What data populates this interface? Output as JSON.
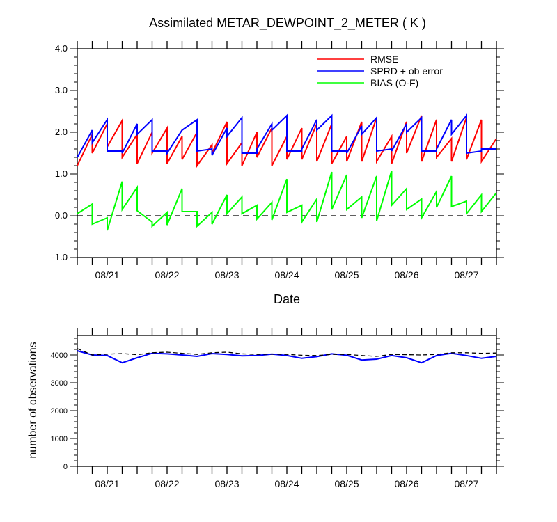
{
  "chart_data": [
    {
      "type": "line",
      "title": "Assimilated METAR_DEWPOINT_2_METER ( K )",
      "xlabel": "Date",
      "ylabel": "",
      "x_tick_labels": [
        "08/21",
        "08/22",
        "08/23",
        "08/24",
        "08/25",
        "08/26",
        "08/27"
      ],
      "x": [
        0,
        0.25,
        0.25,
        0.5,
        0.5,
        0.75,
        0.75,
        1,
        1,
        1.25,
        1.25,
        1.5,
        1.5,
        1.75,
        1.75,
        2,
        2,
        2.25,
        2.25,
        2.5,
        2.5,
        2.75,
        2.75,
        3,
        3,
        3.25,
        3.25,
        3.5,
        3.5,
        3.75,
        3.75,
        4,
        4,
        4.25,
        4.25,
        4.5,
        4.5,
        4.75,
        4.75,
        5,
        5,
        5.25,
        5.25,
        5.5,
        5.5,
        5.75,
        5.75,
        6,
        6,
        6.25,
        6.25,
        6.5,
        6.5,
        6.75,
        6.75,
        7
      ],
      "xlim": [
        0,
        7
      ],
      "ylim": [
        -1.0,
        4.0
      ],
      "y_ticks": [
        -1.0,
        0.0,
        1.0,
        2.0,
        3.0,
        4.0
      ],
      "y_tick_labels": [
        "-1.0",
        "0.0",
        "1.0",
        "2.0",
        "3.0",
        "4.0"
      ],
      "zero_reference": 0.0,
      "legend": {
        "position": "top-right",
        "entries": [
          "RMSE",
          "SPRD + ob error",
          "BIAS (O-F)"
        ]
      },
      "series": [
        {
          "name": "RMSE",
          "color": "#ff0000",
          "values": [
            1.2,
            1.95,
            1.5,
            2.2,
            1.65,
            2.28,
            1.4,
            1.95,
            1.25,
            2.0,
            1.5,
            2.1,
            1.25,
            1.9,
            1.35,
            2.0,
            1.2,
            1.7,
            1.5,
            2.25,
            1.25,
            1.75,
            1.2,
            2.0,
            1.4,
            2.1,
            1.2,
            1.9,
            1.35,
            2.1,
            1.35,
            2.2,
            1.3,
            2.2,
            1.25,
            1.9,
            1.3,
            2.25,
            1.3,
            2.35,
            1.3,
            1.9,
            1.25,
            2.25,
            1.5,
            2.4,
            1.3,
            2.3,
            1.4,
            1.85,
            1.3,
            2.35,
            1.35,
            2.3,
            1.3,
            1.85
          ]
        },
        {
          "name": "SPRD + ob error",
          "color": "#0000ff",
          "values": [
            1.4,
            2.05,
            1.75,
            2.3,
            1.55,
            1.55,
            1.5,
            2.2,
            1.95,
            2.3,
            1.55,
            1.55,
            1.5,
            2.05,
            2.05,
            2.3,
            1.55,
            1.6,
            1.45,
            2.1,
            1.9,
            2.35,
            1.5,
            1.5,
            1.6,
            2.2,
            2.05,
            2.4,
            1.55,
            1.55,
            1.6,
            2.3,
            2.05,
            2.4,
            1.55,
            1.55,
            1.5,
            2.15,
            1.95,
            2.35,
            1.55,
            1.6,
            1.55,
            2.2,
            2.0,
            2.35,
            1.55,
            1.55,
            1.6,
            2.3,
            1.95,
            2.4,
            1.5,
            1.55,
            1.6,
            1.6
          ]
        },
        {
          "name": "BIAS (O-F)",
          "color": "#00ff00",
          "values": [
            0.05,
            0.28,
            -0.2,
            -0.05,
            -0.35,
            0.82,
            0.15,
            0.68,
            0.12,
            -0.15,
            -0.25,
            0.08,
            -0.22,
            0.65,
            0.1,
            0.1,
            -0.25,
            0.08,
            -0.2,
            0.5,
            0.05,
            0.45,
            0.05,
            0.25,
            -0.08,
            0.32,
            -0.1,
            0.88,
            0.08,
            0.25,
            -0.15,
            0.4,
            -0.15,
            1.05,
            0.15,
            0.98,
            0.15,
            0.45,
            -0.05,
            0.95,
            -0.12,
            1.08,
            0.25,
            0.65,
            0.15,
            0.4,
            -0.05,
            0.58,
            0.2,
            0.95,
            0.22,
            0.35,
            0.05,
            0.5,
            0.1,
            0.55
          ]
        }
      ],
      "colors": {
        "zero_line": "#000000"
      }
    },
    {
      "type": "line",
      "title": "",
      "xlabel": "",
      "ylabel": "number of observations",
      "x_tick_labels": [
        "08/21",
        "08/22",
        "08/23",
        "08/24",
        "08/25",
        "08/26",
        "08/27"
      ],
      "x": [
        0,
        0.25,
        0.5,
        0.75,
        1,
        1.25,
        1.5,
        1.75,
        2,
        2.25,
        2.5,
        2.75,
        3,
        3.25,
        3.5,
        3.75,
        4,
        4.25,
        4.5,
        4.75,
        5,
        5.25,
        5.5,
        5.75,
        6,
        6.25,
        6.5,
        6.75,
        7
      ],
      "xlim": [
        0,
        7
      ],
      "ylim": [
        0,
        4700
      ],
      "y_ticks": [
        0,
        1000,
        2000,
        3000,
        4000
      ],
      "y_tick_labels": [
        "0",
        "1000",
        "2000",
        "3000",
        "4000"
      ],
      "series": [
        {
          "name": "",
          "color": "#0000ff",
          "style": "solid",
          "values": [
            4150,
            4000,
            3980,
            3720,
            3900,
            4060,
            4040,
            4000,
            3950,
            4050,
            4020,
            3970,
            3980,
            4030,
            3980,
            3880,
            3940,
            4040,
            3990,
            3820,
            3850,
            3980,
            3900,
            3720,
            3980,
            4060,
            3980,
            3880,
            3950
          ]
        },
        {
          "name": "",
          "color": "#000000",
          "style": "dashed",
          "values": [
            4230,
            4000,
            4030,
            4050,
            4010,
            4080,
            4100,
            4060,
            4020,
            4080,
            4100,
            4040,
            4020,
            4030,
            4020,
            3990,
            3980,
            4020,
            4020,
            3980,
            3950,
            4020,
            4010,
            4000,
            4020,
            4080,
            4080,
            4060,
            4070
          ]
        }
      ]
    }
  ]
}
